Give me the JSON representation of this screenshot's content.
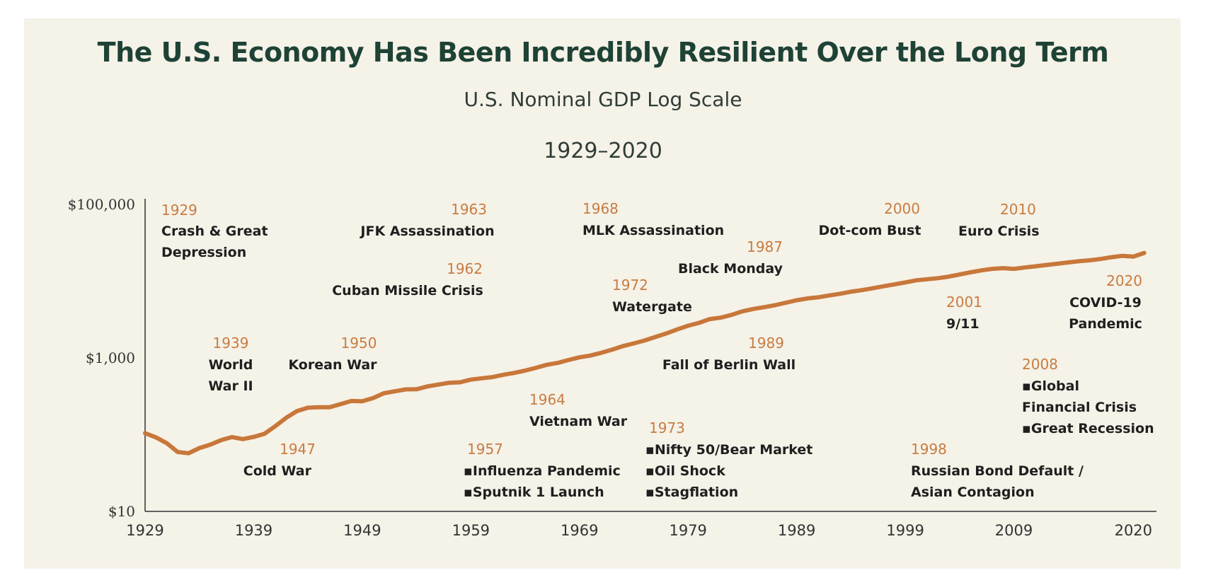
{
  "header": {
    "title": "The U.S. Economy Has Been Incredibly Resilient Over the Long Term",
    "subtitle": "U.S. Nominal GDP Log Scale",
    "date_range": "1929–2020"
  },
  "colors": {
    "background": "#f5f2e8",
    "line": "#c8773a",
    "title": "#1e4236",
    "event_year": "#c87c41",
    "event_text": "#1f1f1f"
  },
  "chart_data": {
    "type": "line",
    "title": "The U.S. Economy Has Been Incredibly Resilient Over the Long Term",
    "subtitle": "U.S. Nominal GDP Log Scale",
    "xlabel": "",
    "ylabel": "",
    "yscale": "log",
    "xlim": [
      1929,
      2022
    ],
    "ylim": [
      10,
      100000
    ],
    "grid": false,
    "x_ticks": [
      "1929",
      "1939",
      "1949",
      "1959",
      "1969",
      "1979",
      "1989",
      "1999",
      "2009",
      "2020"
    ],
    "y_ticks": [
      {
        "value": 100000,
        "label": "$100,000"
      },
      {
        "value": 1000,
        "label": "$1,000"
      },
      {
        "value": 10,
        "label": "$10"
      }
    ],
    "series": [
      {
        "x": [
          1929,
          1930,
          1931,
          1932,
          1933,
          1934,
          1935,
          1936,
          1937,
          1938,
          1939,
          1940,
          1941,
          1942,
          1943,
          1944,
          1945,
          1946,
          1947,
          1948,
          1949,
          1950,
          1951,
          1952,
          1953,
          1954,
          1955,
          1956,
          1957,
          1958,
          1959,
          1960,
          1961,
          1962,
          1963,
          1964,
          1965,
          1966,
          1967,
          1968,
          1969,
          1970,
          1971,
          1972,
          1973,
          1974,
          1975,
          1976,
          1977,
          1978,
          1979,
          1980,
          1981,
          1982,
          1983,
          1984,
          1985,
          1986,
          1987,
          1988,
          1989,
          1990,
          1991,
          1992,
          1993,
          1994,
          1995,
          1996,
          1997,
          1998,
          1999,
          2000,
          2001,
          2002,
          2003,
          2004,
          2005,
          2006,
          2007,
          2008,
          2009,
          2010,
          2011,
          2012,
          2013,
          2014,
          2015,
          2016,
          2017,
          2018,
          2019,
          2020,
          2021
        ],
        "values": [
          104.6,
          92.2,
          77.4,
          59.5,
          57.2,
          66.8,
          74.2,
          84.8,
          93.0,
          87.4,
          93.4,
          102.9,
          129.3,
          166.0,
          203.1,
          224.4,
          228.0,
          227.5,
          249.6,
          274.5,
          272.5,
          299.8,
          346.9,
          367.3,
          389.2,
          390.5,
          425.5,
          449.4,
          474.0,
          481.2,
          521.7,
          542.4,
          562.2,
          603.9,
          637.5,
          684.5,
          742.3,
          813.4,
          860.0,
          940.7,
          1017.6,
          1073.3,
          1164.9,
          1279.1,
          1425.4,
          1545.2,
          1684.9,
          1873.4,
          2081.8,
          2351.6,
          2627.3,
          2857.3,
          3207.0,
          3343.8,
          3634.0,
          4037.6,
          4339.0,
          4579.6,
          4855.2,
          5236.4,
          5641.6,
          5963.1,
          6158.1,
          6520.3,
          6858.6,
          7287.2,
          7639.7,
          8073.1,
          8577.6,
          9062.8,
          9631.2,
          10251.0,
          10581.9,
          10929.1,
          11456.5,
          12217.2,
          13039.2,
          13815.6,
          14474.2,
          14769.9,
          14478.1,
          15049.0,
          15599.7,
          16254.0,
          16843.2,
          17550.7,
          18206.0,
          18695.1,
          19479.6,
          20527.2,
          21372.6,
          20893.7,
          23315.1
        ]
      }
    ],
    "annotations": [
      {
        "year": "1929",
        "lines": [
          "Crash & Great",
          "Depression"
        ]
      },
      {
        "year": "1939",
        "lines": [
          "World",
          "War II"
        ]
      },
      {
        "year": "1947",
        "lines": [
          "Cold War"
        ]
      },
      {
        "year": "1950",
        "lines": [
          "Korean War"
        ]
      },
      {
        "year": "1957",
        "lines": [
          "▪Influenza Pandemic",
          "▪Sputnik 1 Launch"
        ]
      },
      {
        "year": "1962",
        "lines": [
          "Cuban Missile Crisis"
        ]
      },
      {
        "year": "1963",
        "lines": [
          "JFK Assassination"
        ]
      },
      {
        "year": "1964",
        "lines": [
          "Vietnam War"
        ]
      },
      {
        "year": "1968",
        "lines": [
          "MLK Assassination"
        ]
      },
      {
        "year": "1972",
        "lines": [
          "Watergate"
        ]
      },
      {
        "year": "1973",
        "lines": [
          "▪Nifty 50/Bear Market",
          "▪Oil Shock",
          "▪Stagflation"
        ]
      },
      {
        "year": "1987",
        "lines": [
          "Black Monday"
        ]
      },
      {
        "year": "1989",
        "lines": [
          "Fall of Berlin Wall"
        ]
      },
      {
        "year": "1998",
        "lines": [
          "Russian Bond Default /",
          "Asian Contagion"
        ]
      },
      {
        "year": "2000",
        "lines": [
          "Dot-com Bust"
        ]
      },
      {
        "year": "2001",
        "lines": [
          "9/11"
        ]
      },
      {
        "year": "2008",
        "lines": [
          "▪Global",
          "Financial Crisis",
          "▪Great Recession"
        ]
      },
      {
        "year": "2010",
        "lines": [
          "Euro Crisis"
        ]
      },
      {
        "year": "2020",
        "lines": [
          "COVID-19",
          "Pandemic"
        ]
      }
    ]
  }
}
